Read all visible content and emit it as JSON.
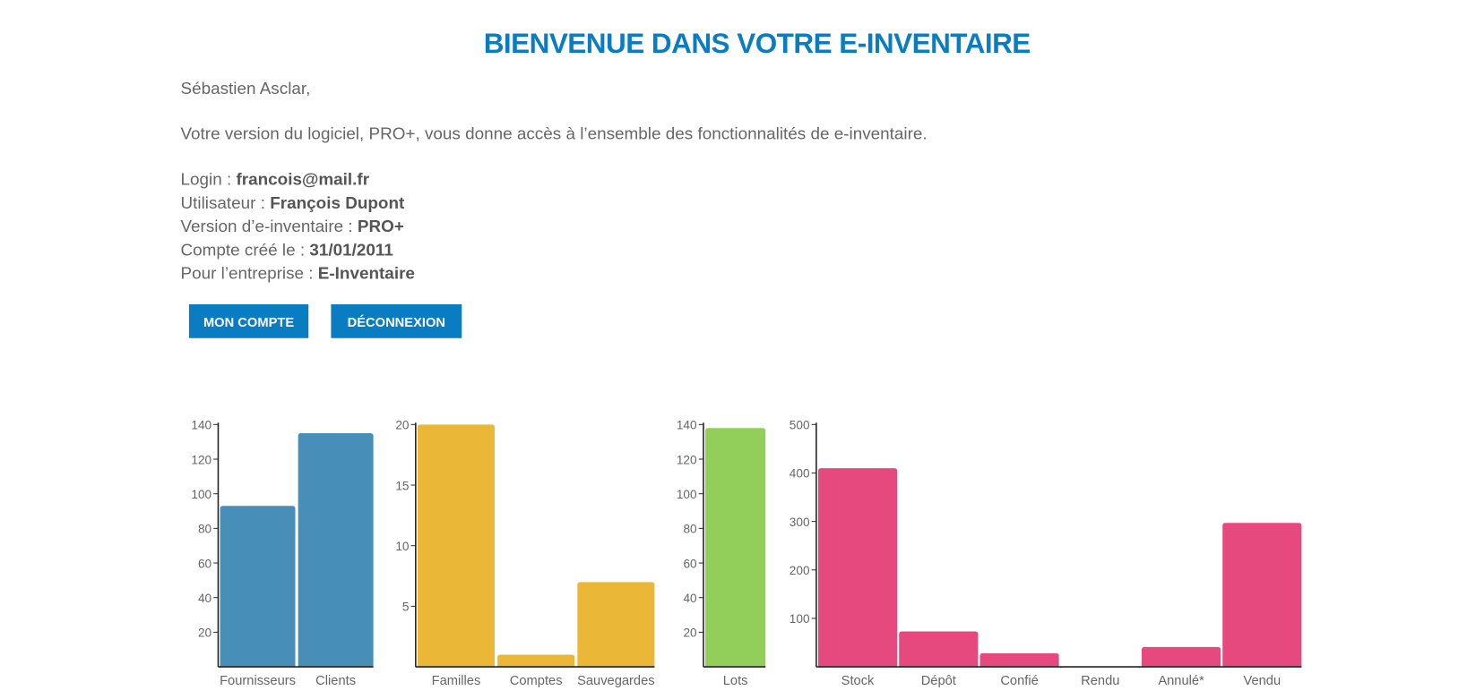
{
  "header": {
    "title": "BIENVENUE DANS VOTRE E-INVENTAIRE"
  },
  "greeting": "Sébastien Asclar,",
  "intro": "Votre version du logiciel, PRO+, vous donne accès à l’ensemble des fonctionnalités de e-inventaire.",
  "info": [
    {
      "label": "Login :",
      "value": "francois@mail.fr"
    },
    {
      "label": "Utilisateur :",
      "value": "François Dupont"
    },
    {
      "label": "Version d’e-inventaire :",
      "value": "PRO+"
    },
    {
      "label": "Compte créé le :",
      "value": "31/01/2011"
    },
    {
      "label": "Pour l’entreprise :",
      "value": "E-Inventaire"
    }
  ],
  "buttons": [
    "MON COMPTE",
    "DÉCONNEXION"
  ],
  "chart_data": [
    {
      "type": "bar",
      "categories": [
        "Fournisseurs",
        "Clients"
      ],
      "values": [
        93,
        135
      ],
      "color": "#478fb8",
      "ylim": [
        0,
        140
      ],
      "yticks": [
        20,
        40,
        60,
        80,
        100,
        120,
        140
      ]
    },
    {
      "type": "bar",
      "categories": [
        "Familles",
        "Comptes",
        "Sauvegardes"
      ],
      "values": [
        20,
        1,
        7
      ],
      "color": "#ebb737",
      "ylim": [
        0,
        20
      ],
      "yticks": [
        5,
        10,
        15,
        20
      ]
    },
    {
      "type": "bar",
      "categories": [
        "Lots"
      ],
      "values": [
        138
      ],
      "color": "#92cf5a",
      "ylim": [
        0,
        140
      ],
      "yticks": [
        20,
        40,
        60,
        80,
        100,
        120,
        140
      ]
    },
    {
      "type": "bar",
      "categories": [
        "Stock",
        "Dépôt",
        "Confié",
        "Rendu",
        "Annulé*",
        "Vendu"
      ],
      "values": [
        410,
        73,
        28,
        0,
        41,
        297
      ],
      "color": "#e6497e",
      "ylim": [
        0,
        500
      ],
      "yticks": [
        100,
        200,
        300,
        400,
        500
      ]
    }
  ]
}
